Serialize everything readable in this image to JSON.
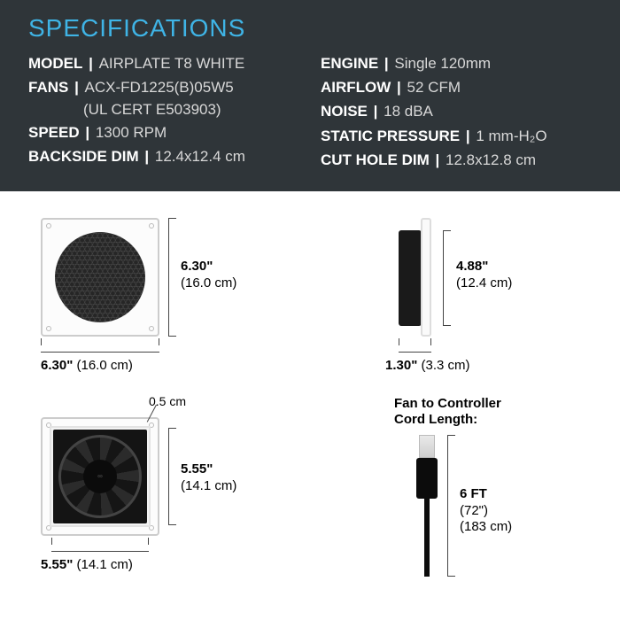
{
  "title": "SPECIFICATIONS",
  "left": [
    {
      "label": "MODEL",
      "value": "AIRPLATE T8 WHITE"
    },
    {
      "label": "FANS",
      "value": "ACX-FD1225(B)05W5",
      "sub": "(UL CERT E503903)"
    },
    {
      "label": "SPEED",
      "value": "1300 RPM"
    },
    {
      "label": "BACKSIDE DIM",
      "value": "12.4x12.4 cm"
    }
  ],
  "right": [
    {
      "label": "ENGINE",
      "value": "Single 120mm"
    },
    {
      "label": "AIRFLOW",
      "value": "52 CFM"
    },
    {
      "label": "NOISE",
      "value": "18 dBA"
    },
    {
      "label": "STATIC PRESSURE",
      "value": "1 mm-H₂O"
    },
    {
      "label": "CUT HOLE DIM",
      "value": "12.8x12.8 cm"
    }
  ],
  "dims": {
    "frontW": {
      "b": "6.30\"",
      "p": "(16.0 cm)"
    },
    "frontH": {
      "b": "6.30\"",
      "p": "(16.0 cm)"
    },
    "sideD": {
      "b": "1.30\"",
      "p": "(3.3 cm)"
    },
    "sideH": {
      "b": "4.88\"",
      "p": "(12.4 cm)"
    },
    "backW": {
      "b": "5.55\"",
      "p": "(14.1 cm)"
    },
    "backH": {
      "b": "5.55\"",
      "p": "(14.1 cm)"
    },
    "frame": "0.5 cm",
    "cordTitle": "Fan to Controller\nCord Length:",
    "cordLen": {
      "b": "6 FT",
      "p1": "(72\")",
      "p2": "(183 cm)"
    }
  }
}
